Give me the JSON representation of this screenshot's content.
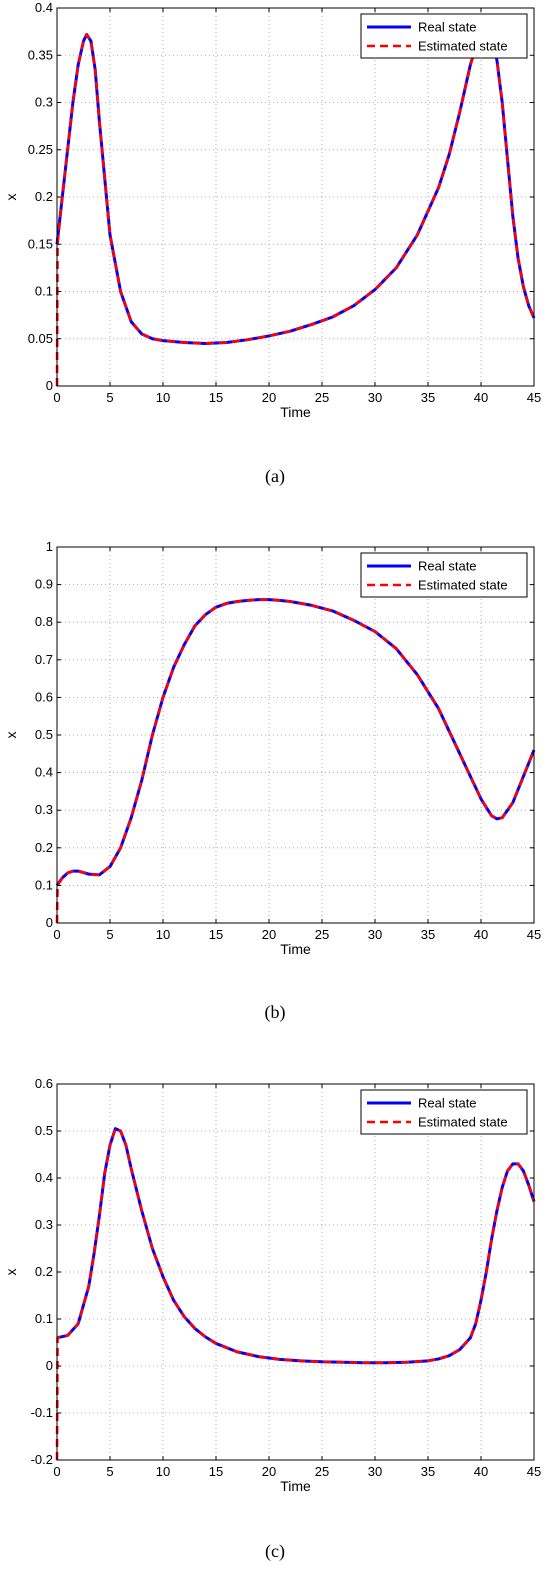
{
  "chart_data": [
    {
      "type": "line",
      "caption": "(a)",
      "xlabel": "Time",
      "ylabel": "x",
      "xlim": [
        0,
        45
      ],
      "ylim": [
        0,
        0.4
      ],
      "xticks": [
        0,
        5,
        10,
        15,
        20,
        25,
        30,
        35,
        40,
        45
      ],
      "yticks": [
        0,
        0.05,
        0.1,
        0.15,
        0.2,
        0.25,
        0.3,
        0.35,
        0.4
      ],
      "ytick_labels": [
        "0",
        "0.05",
        "0.1",
        "0.15",
        "0.2",
        "0.25",
        "0.3",
        "0.35",
        "0.4"
      ],
      "grid": true,
      "legend_position": "top-right",
      "series": [
        {
          "name": "Real state",
          "color": "#0000ff",
          "style": "solid",
          "x": [
            0,
            0.5,
            1,
            1.5,
            2,
            2.5,
            2.8,
            3.2,
            3.6,
            4,
            4.5,
            5,
            6,
            7,
            8,
            9,
            10,
            12,
            14,
            16,
            18,
            20,
            22,
            24,
            26,
            28,
            30,
            32,
            34,
            36,
            37,
            38,
            38.5,
            39,
            39.5,
            40,
            40.5,
            41,
            41.5,
            42,
            42.5,
            43,
            43.5,
            44,
            44.5,
            45
          ],
          "y": [
            0.15,
            0.2,
            0.25,
            0.3,
            0.34,
            0.365,
            0.372,
            0.365,
            0.335,
            0.28,
            0.22,
            0.16,
            0.1,
            0.068,
            0.055,
            0.05,
            0.048,
            0.046,
            0.045,
            0.046,
            0.049,
            0.053,
            0.058,
            0.065,
            0.073,
            0.085,
            0.102,
            0.125,
            0.16,
            0.21,
            0.245,
            0.29,
            0.315,
            0.34,
            0.358,
            0.368,
            0.37,
            0.365,
            0.345,
            0.3,
            0.24,
            0.18,
            0.135,
            0.105,
            0.085,
            0.072
          ]
        },
        {
          "name": "Estimated state",
          "color": "#ff0000",
          "style": "dashed",
          "x": [
            0,
            0.05,
            0.5,
            1,
            1.5,
            2,
            2.5,
            2.8,
            3.2,
            3.6,
            4,
            4.5,
            5,
            6,
            7,
            8,
            9,
            10,
            12,
            14,
            16,
            18,
            20,
            22,
            24,
            26,
            28,
            30,
            32,
            34,
            36,
            37,
            38,
            38.5,
            39,
            39.5,
            40,
            40.5,
            41,
            41.5,
            42,
            42.5,
            43,
            43.5,
            44,
            44.5,
            45
          ],
          "y": [
            0,
            0.15,
            0.2,
            0.25,
            0.3,
            0.34,
            0.365,
            0.372,
            0.365,
            0.335,
            0.28,
            0.22,
            0.16,
            0.1,
            0.068,
            0.055,
            0.05,
            0.048,
            0.046,
            0.045,
            0.046,
            0.049,
            0.053,
            0.058,
            0.065,
            0.073,
            0.085,
            0.102,
            0.125,
            0.16,
            0.21,
            0.245,
            0.29,
            0.315,
            0.34,
            0.358,
            0.368,
            0.37,
            0.365,
            0.345,
            0.3,
            0.24,
            0.18,
            0.135,
            0.105,
            0.085,
            0.072
          ]
        }
      ]
    },
    {
      "type": "line",
      "caption": "(b)",
      "xlabel": "Time",
      "ylabel": "x",
      "xlim": [
        0,
        45
      ],
      "ylim": [
        0,
        1
      ],
      "xticks": [
        0,
        5,
        10,
        15,
        20,
        25,
        30,
        35,
        40,
        45
      ],
      "yticks": [
        0,
        0.1,
        0.2,
        0.3,
        0.4,
        0.5,
        0.6,
        0.7,
        0.8,
        0.9,
        1
      ],
      "ytick_labels": [
        "0",
        "0.1",
        "0.2",
        "0.3",
        "0.4",
        "0.5",
        "0.6",
        "0.7",
        "0.8",
        "0.9",
        "1"
      ],
      "grid": true,
      "legend_position": "top-right",
      "series": [
        {
          "name": "Real state",
          "color": "#0000ff",
          "style": "solid",
          "x": [
            0,
            0.5,
            1,
            1.5,
            2,
            3,
            4,
            5,
            6,
            7,
            8,
            9,
            10,
            11,
            12,
            13,
            14,
            15,
            16,
            17,
            18,
            19,
            20,
            21,
            22,
            24,
            26,
            28,
            30,
            32,
            34,
            36,
            38,
            39,
            40,
            41,
            41.5,
            42,
            43,
            44,
            45
          ],
          "y": [
            0.1,
            0.12,
            0.133,
            0.138,
            0.138,
            0.13,
            0.128,
            0.15,
            0.2,
            0.28,
            0.38,
            0.5,
            0.6,
            0.68,
            0.74,
            0.79,
            0.82,
            0.84,
            0.85,
            0.855,
            0.858,
            0.86,
            0.86,
            0.858,
            0.855,
            0.845,
            0.83,
            0.805,
            0.775,
            0.73,
            0.66,
            0.57,
            0.45,
            0.39,
            0.33,
            0.285,
            0.277,
            0.28,
            0.32,
            0.39,
            0.46
          ]
        },
        {
          "name": "Estimated state",
          "color": "#ff0000",
          "style": "dashed",
          "x": [
            0,
            0.05,
            0.5,
            1,
            1.5,
            2,
            3,
            4,
            5,
            6,
            7,
            8,
            9,
            10,
            11,
            12,
            13,
            14,
            15,
            16,
            17,
            18,
            19,
            20,
            21,
            22,
            24,
            26,
            28,
            30,
            32,
            34,
            36,
            38,
            39,
            40,
            41,
            41.5,
            42,
            43,
            44,
            45
          ],
          "y": [
            0,
            0.1,
            0.12,
            0.133,
            0.138,
            0.138,
            0.13,
            0.128,
            0.15,
            0.2,
            0.28,
            0.38,
            0.5,
            0.6,
            0.68,
            0.74,
            0.79,
            0.82,
            0.84,
            0.85,
            0.855,
            0.858,
            0.86,
            0.86,
            0.858,
            0.855,
            0.845,
            0.83,
            0.805,
            0.775,
            0.73,
            0.66,
            0.57,
            0.45,
            0.39,
            0.33,
            0.285,
            0.277,
            0.28,
            0.32,
            0.39,
            0.46
          ]
        }
      ]
    },
    {
      "type": "line",
      "caption": "(c)",
      "xlabel": "Time",
      "ylabel": "x",
      "xlim": [
        0,
        45
      ],
      "ylim": [
        -0.2,
        0.6
      ],
      "xticks": [
        0,
        5,
        10,
        15,
        20,
        25,
        30,
        35,
        40,
        45
      ],
      "yticks": [
        -0.2,
        -0.1,
        0,
        0.1,
        0.2,
        0.3,
        0.4,
        0.5,
        0.6
      ],
      "ytick_labels": [
        "-0.2",
        "-0.1",
        "0",
        "0.1",
        "0.2",
        "0.3",
        "0.4",
        "0.5",
        "0.6"
      ],
      "grid": true,
      "legend_position": "top-right",
      "series": [
        {
          "name": "Real state",
          "color": "#0000ff",
          "style": "solid",
          "x": [
            0,
            1,
            2,
            3,
            3.5,
            4,
            4.5,
            5,
            5.5,
            6,
            6.5,
            7,
            8,
            9,
            10,
            11,
            12,
            13,
            14,
            15,
            17,
            19,
            21,
            23,
            25,
            27,
            29,
            31,
            33,
            35,
            36,
            37,
            38,
            39,
            39.5,
            40,
            40.5,
            41,
            41.5,
            42,
            42.5,
            43,
            43.5,
            44,
            44.5,
            45
          ],
          "y": [
            0.06,
            0.065,
            0.09,
            0.17,
            0.24,
            0.32,
            0.41,
            0.47,
            0.505,
            0.5,
            0.47,
            0.42,
            0.33,
            0.25,
            0.19,
            0.14,
            0.105,
            0.08,
            0.062,
            0.048,
            0.03,
            0.02,
            0.014,
            0.011,
            0.009,
            0.008,
            0.007,
            0.007,
            0.008,
            0.011,
            0.015,
            0.022,
            0.035,
            0.06,
            0.09,
            0.14,
            0.2,
            0.27,
            0.33,
            0.38,
            0.415,
            0.43,
            0.43,
            0.415,
            0.385,
            0.35
          ]
        },
        {
          "name": "Estimated state",
          "color": "#ff0000",
          "style": "dashed",
          "x": [
            0,
            0.05,
            1,
            2,
            3,
            3.5,
            4,
            4.5,
            5,
            5.5,
            6,
            6.5,
            7,
            8,
            9,
            10,
            11,
            12,
            13,
            14,
            15,
            17,
            19,
            21,
            23,
            25,
            27,
            29,
            31,
            33,
            35,
            36,
            37,
            38,
            39,
            39.5,
            40,
            40.5,
            41,
            41.5,
            42,
            42.5,
            43,
            43.5,
            44,
            44.5,
            45
          ],
          "y": [
            -0.2,
            0.06,
            0.065,
            0.09,
            0.17,
            0.24,
            0.32,
            0.41,
            0.47,
            0.505,
            0.5,
            0.47,
            0.42,
            0.33,
            0.25,
            0.19,
            0.14,
            0.105,
            0.08,
            0.062,
            0.048,
            0.03,
            0.02,
            0.014,
            0.011,
            0.009,
            0.008,
            0.007,
            0.007,
            0.008,
            0.011,
            0.015,
            0.022,
            0.035,
            0.06,
            0.09,
            0.14,
            0.2,
            0.27,
            0.33,
            0.38,
            0.415,
            0.43,
            0.43,
            0.415,
            0.385,
            0.35
          ]
        }
      ]
    }
  ]
}
